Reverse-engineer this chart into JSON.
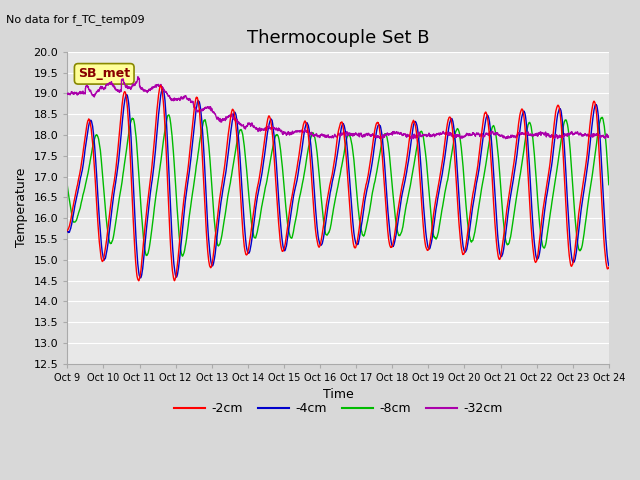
{
  "title": "Thermocouple Set B",
  "subtitle": "No data for f_TC_temp09",
  "xlabel": "Time",
  "ylabel": "Temperature",
  "xlim": [
    0,
    15
  ],
  "ylim": [
    12.5,
    20.0
  ],
  "yticks": [
    12.5,
    13.0,
    13.5,
    14.0,
    14.5,
    15.0,
    15.5,
    16.0,
    16.5,
    17.0,
    17.5,
    18.0,
    18.5,
    19.0,
    19.5,
    20.0
  ],
  "xtick_labels": [
    "Oct 9",
    "Oct 10",
    "Oct 11",
    "Oct 12",
    "Oct 13",
    "Oct 14",
    "Oct 15",
    "Oct 16",
    "Oct 17",
    "Oct 18",
    "Oct 19",
    "Oct 20",
    "Oct 21",
    "Oct 22",
    "Oct 23",
    "Oct 24"
  ],
  "legend_labels": [
    "-2cm",
    "-4cm",
    "-8cm",
    "-32cm"
  ],
  "legend_colors": [
    "#ff0000",
    "#0000cc",
    "#00bb00",
    "#aa00aa"
  ],
  "sb_met_color_face": "#ffff99",
  "sb_met_color_text": "#880000",
  "sb_met_color_edge": "#888800",
  "background_color": "#d8d8d8",
  "plot_bg_color": "#e8e8e8",
  "grid_color": "#ffffff",
  "title_fontsize": 13,
  "axis_fontsize": 9,
  "tick_fontsize": 8,
  "legend_fontsize": 9
}
